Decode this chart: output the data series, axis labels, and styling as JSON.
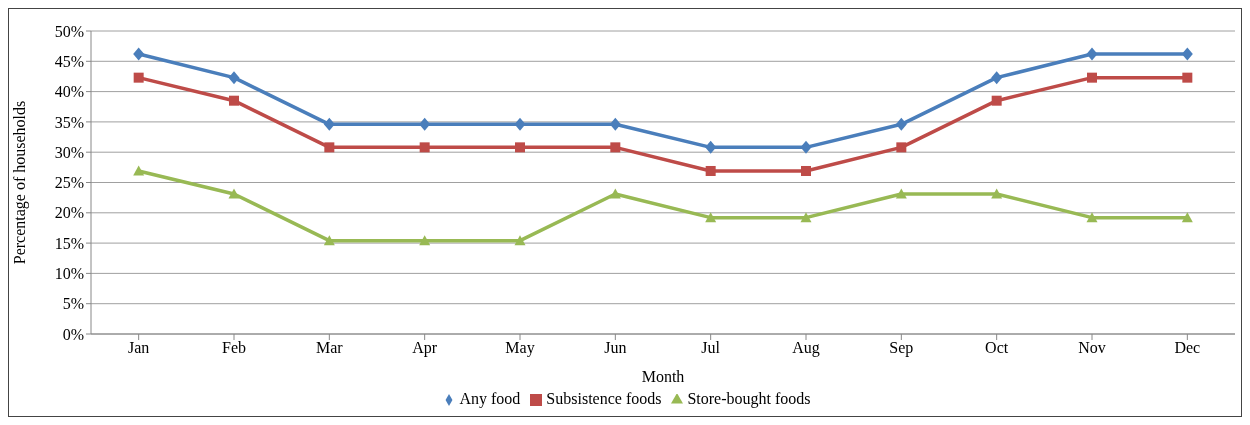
{
  "chart_data": {
    "type": "line",
    "xlabel": "Month",
    "ylabel": "Percentage of households",
    "categories": [
      "Jan",
      "Feb",
      "Mar",
      "Apr",
      "May",
      "Jun",
      "Jul",
      "Aug",
      "Sep",
      "Oct",
      "Nov",
      "Dec"
    ],
    "series": [
      {
        "name": "Any food",
        "color": "#4a7ebb",
        "marker": "diamond",
        "values": [
          46.2,
          42.3,
          34.6,
          34.6,
          34.6,
          34.6,
          30.8,
          30.8,
          34.6,
          42.3,
          46.2,
          46.2
        ]
      },
      {
        "name": "Subsistence foods",
        "color": "#be4b48",
        "marker": "square",
        "values": [
          42.3,
          38.5,
          30.8,
          30.8,
          30.8,
          30.8,
          26.9,
          26.9,
          30.8,
          38.5,
          42.3,
          42.3
        ]
      },
      {
        "name": "Store-bought foods",
        "color": "#98b954",
        "marker": "triangle",
        "values": [
          26.9,
          23.1,
          15.4,
          15.4,
          15.4,
          23.1,
          19.2,
          19.2,
          23.1,
          23.1,
          19.2,
          19.2
        ]
      }
    ],
    "ylim": [
      0,
      50
    ],
    "yticks": [
      {
        "value": 0,
        "label": "0%"
      },
      {
        "value": 5,
        "label": "5%"
      },
      {
        "value": 10,
        "label": "10%"
      },
      {
        "value": 15,
        "label": "15%"
      },
      {
        "value": 20,
        "label": "20%"
      },
      {
        "value": 25,
        "label": "25%"
      },
      {
        "value": 30,
        "label": "30%"
      },
      {
        "value": 35,
        "label": "35%"
      },
      {
        "value": 40,
        "label": "40%"
      },
      {
        "value": 45,
        "label": "45%"
      },
      {
        "value": 50,
        "label": "50%"
      }
    ],
    "grid": "y",
    "legend": "bottom",
    "line_style": "solid"
  }
}
